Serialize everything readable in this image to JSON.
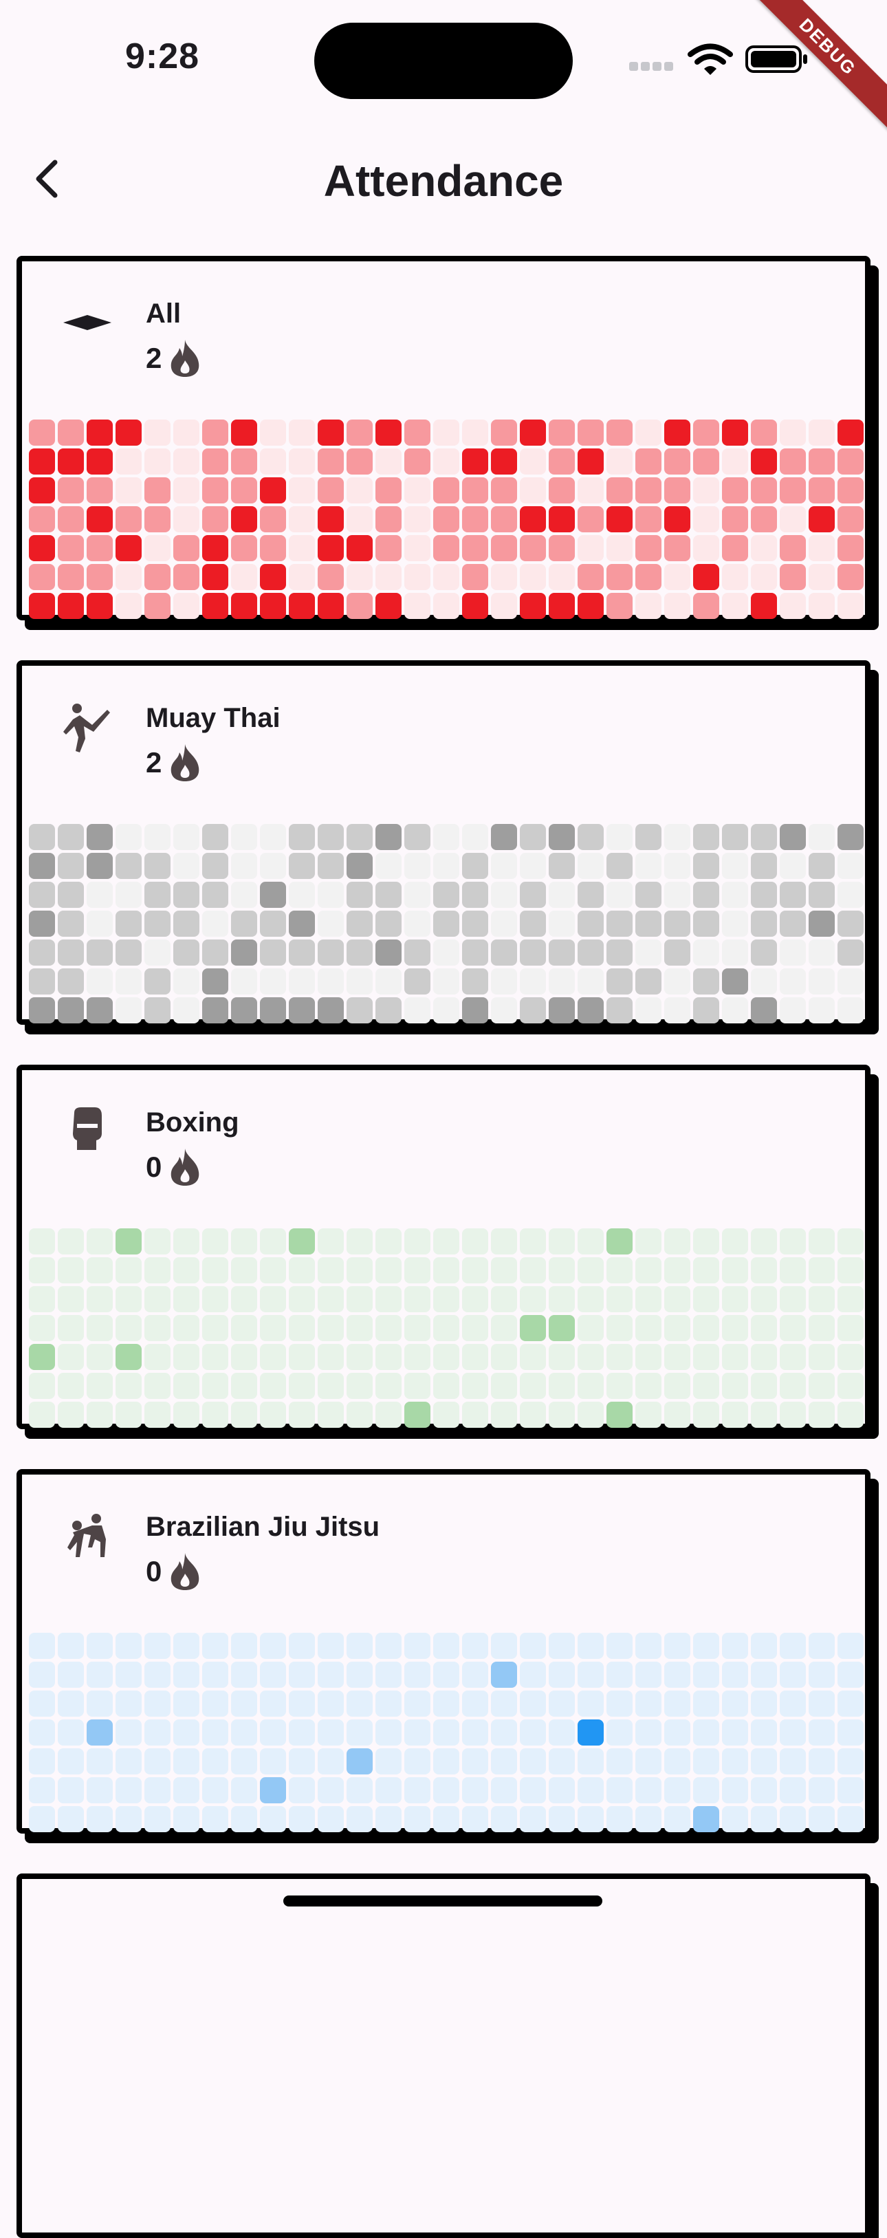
{
  "status_bar": {
    "time": "9:28",
    "debug_label": "DEBUG"
  },
  "app_bar": {
    "title": "Attendance",
    "back_icon": "chevron-left-icon"
  },
  "cards": [
    {
      "name": "All",
      "streak": "2",
      "icon": "mat-icon",
      "palette": [
        "#fde8ea",
        "#f7999e",
        "#ec1c24"
      ],
      "grid": [
        "11220012002121001211102121002",
        "22200011001101022012011102111",
        "21101011201010111010111011111",
        "11211012102010111221212011021",
        "21120121102210111110011010101",
        "11101120201000010001110200101",
        "22201022222120020222100102000"
      ]
    },
    {
      "name": "Muay Thai",
      "streak": "2",
      "icon": "kick-icon",
      "palette": [
        "#f2f2f2",
        "#cccccc",
        "#9e9e9e"
      ],
      "grid": [
        "11200010011121002121010111202",
        "21211010011200010010100101010",
        "11001110200110110101010101110",
        "21011101120110110101111101121",
        "11110112111121011111101001001",
        "11001020000001010000110120000",
        "22201022222110020122100102000"
      ]
    },
    {
      "name": "Boxing",
      "streak": "0",
      "icon": "boxing-glove-icon",
      "palette": [
        "#e8f3e9",
        "#a8d8a7",
        "#6cbf6c"
      ],
      "grid": [
        "00010000010000000000100000000",
        "00000000000000000000000000000",
        "00000000000000000000000000000",
        "00000000000000000110000000000",
        "10010000000000000000000000000",
        "00000000000000000000000000000",
        "00000000000001000000100000000"
      ]
    },
    {
      "name": "Brazilian Jiu Jitsu",
      "streak": "0",
      "icon": "grappling-icon",
      "palette": [
        "#e3f0fc",
        "#93c8f5",
        "#2196f3"
      ],
      "grid": [
        "00000000000000000000000000000",
        "00000000000000001000000000000",
        "00000000000000000000000000000",
        "00100000000000000002000000000",
        "00000000000100000000000000000",
        "00000000100000000000000000000",
        "00000000000000000000000100000"
      ]
    },
    {
      "name": "",
      "streak": "",
      "icon": "",
      "palette": [],
      "grid": []
    }
  ]
}
